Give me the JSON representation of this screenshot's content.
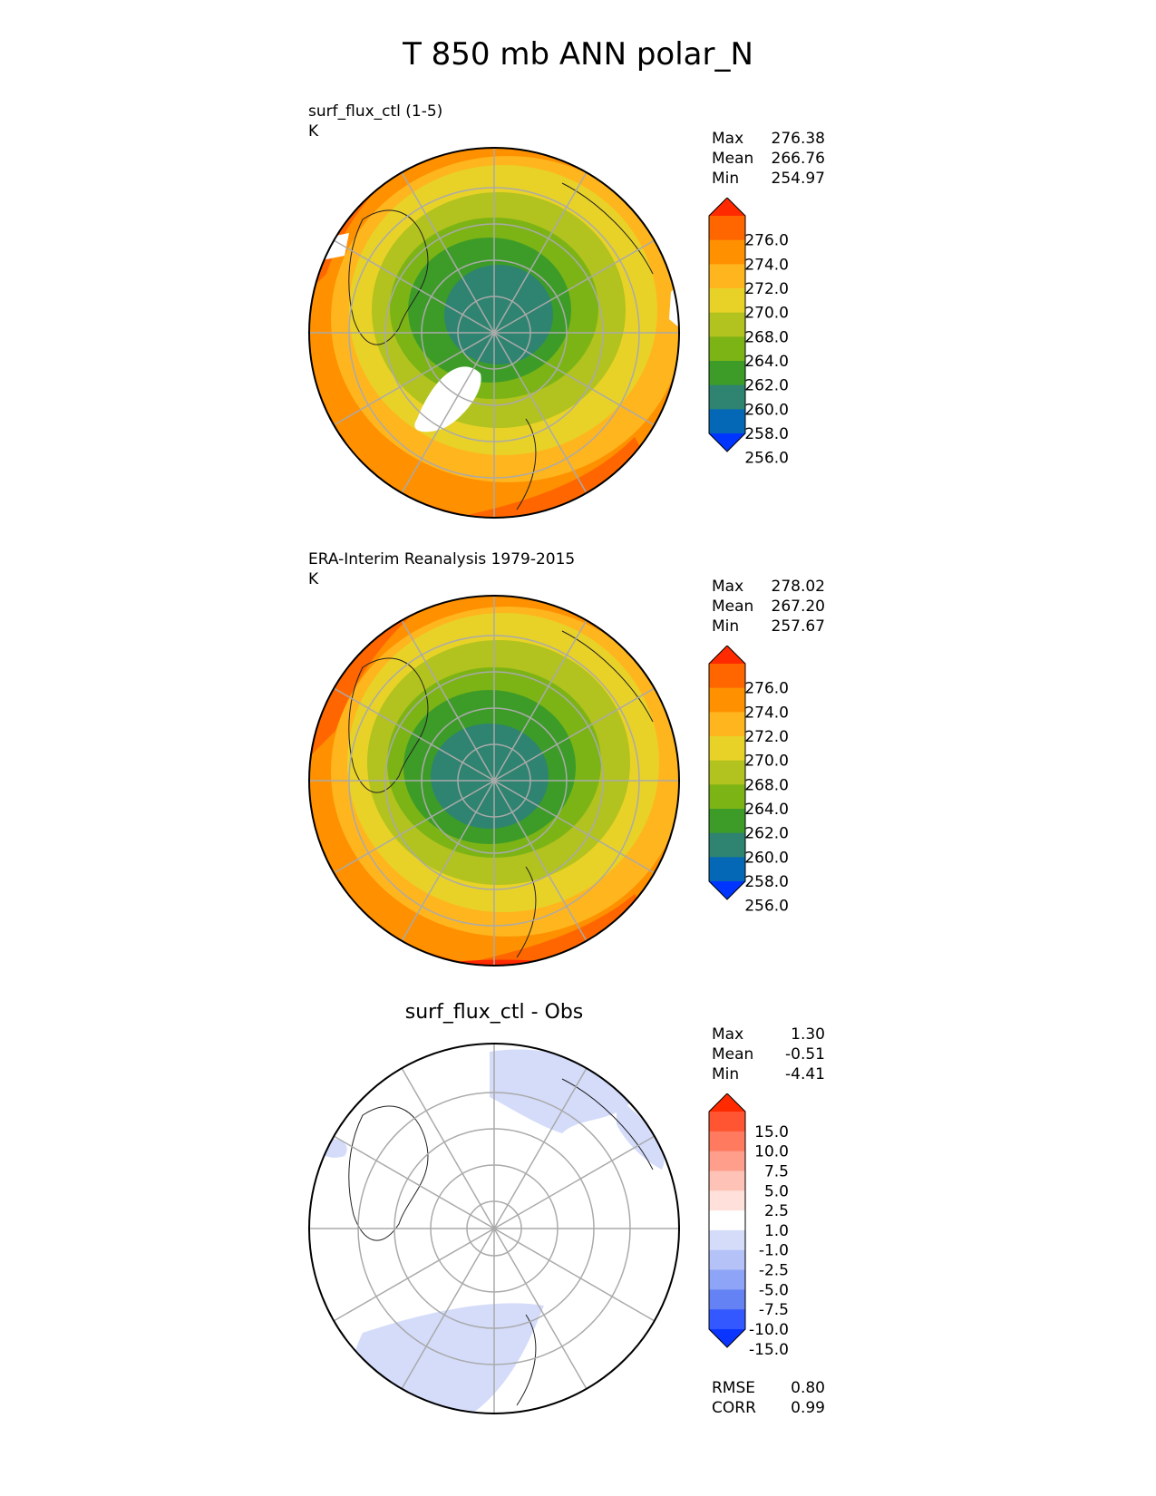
{
  "title": "T 850 mb ANN polar_N",
  "panels": [
    {
      "id": "test",
      "title": "surf_flux_ctl (1-5)",
      "units": "K",
      "stats": [
        {
          "label": "Max",
          "value": "276.38"
        },
        {
          "label": "Mean",
          "value": "266.76"
        },
        {
          "label": "Min",
          "value": "254.97"
        }
      ],
      "colorbar": {
        "labels": [
          "276.0",
          "274.0",
          "272.0",
          "270.0",
          "268.0",
          "264.0",
          "262.0",
          "260.0",
          "258.0",
          "256.0"
        ],
        "colors": [
          "#ff2a00",
          "#ff6600",
          "#ff9000",
          "#ffb51e",
          "#e8d228",
          "#b2c21e",
          "#7cb416",
          "#3d9c28",
          "#2e8470",
          "#0468b6",
          "#0035ff"
        ]
      }
    },
    {
      "id": "reference",
      "title": "ERA-Interim Reanalysis 1979-2015",
      "units": "K",
      "stats": [
        {
          "label": "Max",
          "value": "278.02"
        },
        {
          "label": "Mean",
          "value": "267.20"
        },
        {
          "label": "Min",
          "value": "257.67"
        }
      ],
      "colorbar": {
        "labels": [
          "276.0",
          "274.0",
          "272.0",
          "270.0",
          "268.0",
          "264.0",
          "262.0",
          "260.0",
          "258.0",
          "256.0"
        ],
        "colors": [
          "#ff2a00",
          "#ff6600",
          "#ff9000",
          "#ffb51e",
          "#e8d228",
          "#b2c21e",
          "#7cb416",
          "#3d9c28",
          "#2e8470",
          "#0468b6",
          "#0035ff"
        ]
      }
    },
    {
      "id": "diff",
      "title": "surf_flux_ctl - Obs",
      "stats": [
        {
          "label": "Max",
          "value": "1.30"
        },
        {
          "label": "Mean",
          "value": "-0.51"
        },
        {
          "label": "Min",
          "value": "-4.41"
        }
      ],
      "metrics": [
        {
          "label": "RMSE",
          "value": "0.80"
        },
        {
          "label": "CORR",
          "value": "0.99"
        }
      ],
      "colorbar": {
        "labels": [
          "15.0",
          "10.0",
          "7.5",
          "5.0",
          "2.5",
          "1.0",
          "-1.0",
          "-2.5",
          "-5.0",
          "-7.5",
          "-10.0",
          "-15.0"
        ],
        "colors": [
          "#ff2a00",
          "#ff5533",
          "#ff7a5e",
          "#ff9e8a",
          "#ffc2b6",
          "#ffe0da",
          "#ffffff",
          "#d4dcfa",
          "#b4c2f8",
          "#8ea4f6",
          "#6482f4",
          "#3458ff",
          "#0a35ff"
        ]
      }
    }
  ]
}
